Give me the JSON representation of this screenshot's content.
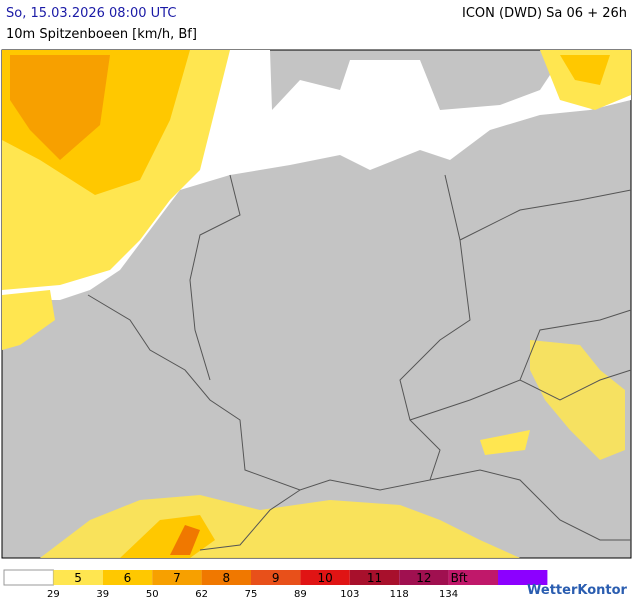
{
  "header": {
    "date": "So, 15.03.2026 08:00 UTC",
    "parameter": "10m Spitzenboeen [km/h, Bf]",
    "model": "ICON (DWD) Sa 06 + 26h"
  },
  "legend": {
    "colors": [
      "#ffffff",
      "#ffe650",
      "#ffc800",
      "#f7a000",
      "#f07800",
      "#e8501a",
      "#e01414",
      "#a8102c",
      "#a01050",
      "#c0186a",
      "#8c00ff"
    ],
    "labels": [
      "5",
      "6",
      "7",
      "8",
      "9",
      "10",
      "11",
      "12",
      "Bft"
    ],
    "thresholds": [
      29,
      39,
      50,
      62,
      75,
      89,
      103,
      118,
      134
    ]
  },
  "logo": "WetterKontor"
}
